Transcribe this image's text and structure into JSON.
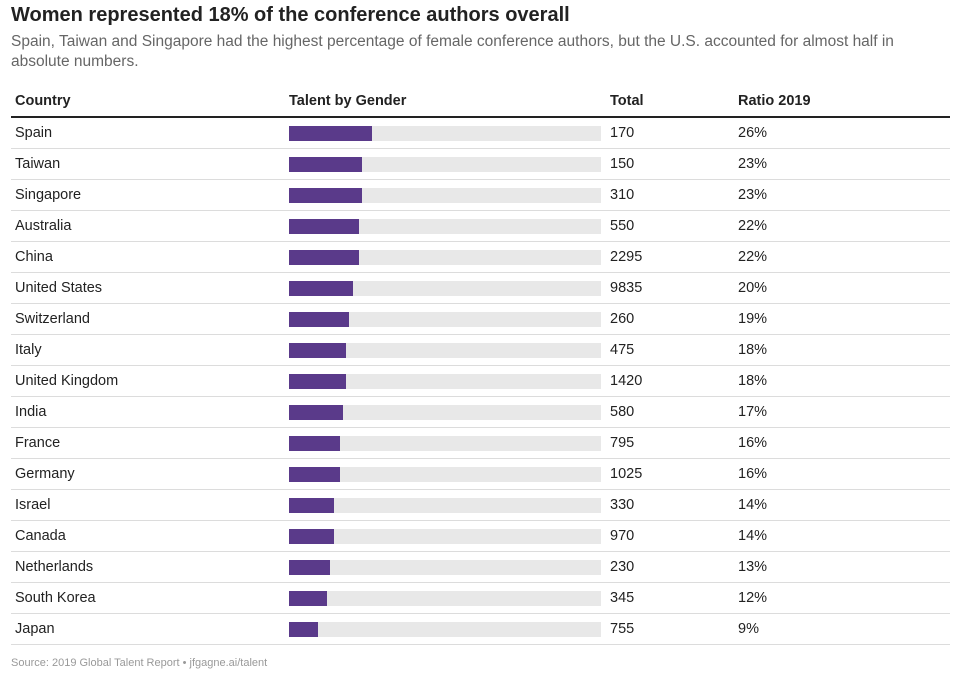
{
  "title": "Women represented 18% of the conference authors overall",
  "subtitle": "Spain, Taiwan and Singapore had the highest percentage of female conference authors, but the U.S. accounted for almost half in absolute numbers.",
  "columns": {
    "country": "Country",
    "talent": "Talent by Gender",
    "total": "Total",
    "ratio": "Ratio 2019"
  },
  "source": "Source: 2019 Global Talent Report • jfgagne.ai/talent",
  "colors": {
    "bar": "#5a3a8a",
    "track": "#e8e8e8"
  },
  "chart_data": {
    "type": "table",
    "bar_max_percent": 100,
    "rows": [
      {
        "country": "Spain",
        "total": "170",
        "ratio": "26%",
        "value": 26
      },
      {
        "country": "Taiwan",
        "total": "150",
        "ratio": "23%",
        "value": 23
      },
      {
        "country": "Singapore",
        "total": "310",
        "ratio": "23%",
        "value": 23
      },
      {
        "country": "Australia",
        "total": "550",
        "ratio": "22%",
        "value": 22
      },
      {
        "country": "China",
        "total": "2295",
        "ratio": "22%",
        "value": 22
      },
      {
        "country": "United States",
        "total": "9835",
        "ratio": "20%",
        "value": 20
      },
      {
        "country": "Switzerland",
        "total": "260",
        "ratio": "19%",
        "value": 19
      },
      {
        "country": "Italy",
        "total": "475",
        "ratio": "18%",
        "value": 18
      },
      {
        "country": "United Kingdom",
        "total": "1420",
        "ratio": "18%",
        "value": 18
      },
      {
        "country": "India",
        "total": "580",
        "ratio": "17%",
        "value": 17
      },
      {
        "country": "France",
        "total": "795",
        "ratio": "16%",
        "value": 16
      },
      {
        "country": "Germany",
        "total": "1025",
        "ratio": "16%",
        "value": 16
      },
      {
        "country": "Israel",
        "total": "330",
        "ratio": "14%",
        "value": 14
      },
      {
        "country": "Canada",
        "total": "970",
        "ratio": "14%",
        "value": 14
      },
      {
        "country": "Netherlands",
        "total": "230",
        "ratio": "13%",
        "value": 13
      },
      {
        "country": "South Korea",
        "total": "345",
        "ratio": "12%",
        "value": 12
      },
      {
        "country": "Japan",
        "total": "755",
        "ratio": "9%",
        "value": 9
      }
    ]
  }
}
